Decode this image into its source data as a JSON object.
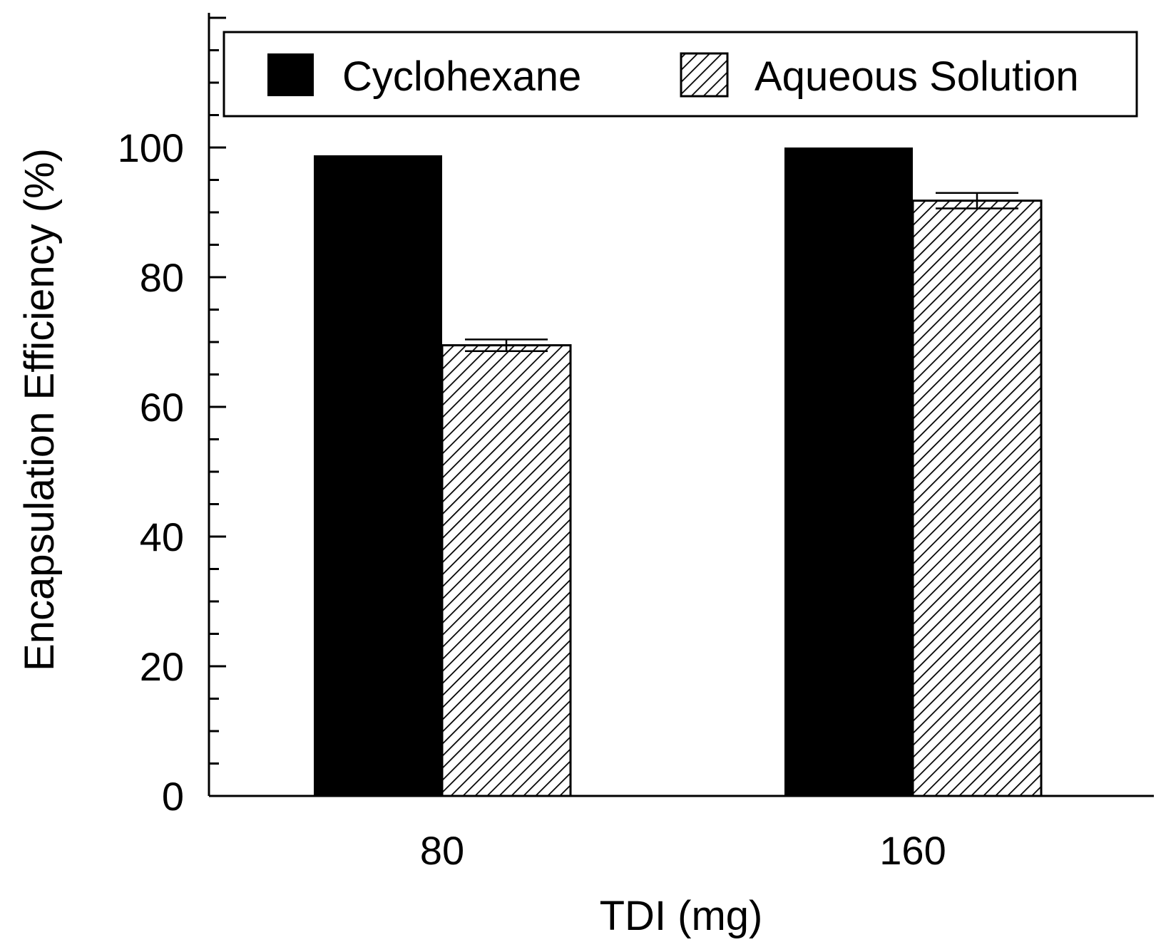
{
  "chart_data": {
    "type": "bar",
    "title": "",
    "xlabel": "TDI (mg)",
    "ylabel": "Encapsulation Efficiency (%)",
    "categories": [
      "80",
      "160"
    ],
    "ylim": [
      0,
      120
    ],
    "yticks": [
      "0",
      "20",
      "40",
      "60",
      "80",
      "100"
    ],
    "grid": false,
    "legend_position": "top",
    "series": [
      {
        "name": "Cyclohexane",
        "values": [
          98.8,
          100
        ],
        "errors": [
          0,
          0
        ],
        "fill": "solid",
        "color": "#000000"
      },
      {
        "name": "Aqueous Solution",
        "values": [
          69.5,
          91.8
        ],
        "errors": [
          0.9,
          1.2
        ],
        "fill": "hatched",
        "color": "#000000"
      }
    ]
  }
}
